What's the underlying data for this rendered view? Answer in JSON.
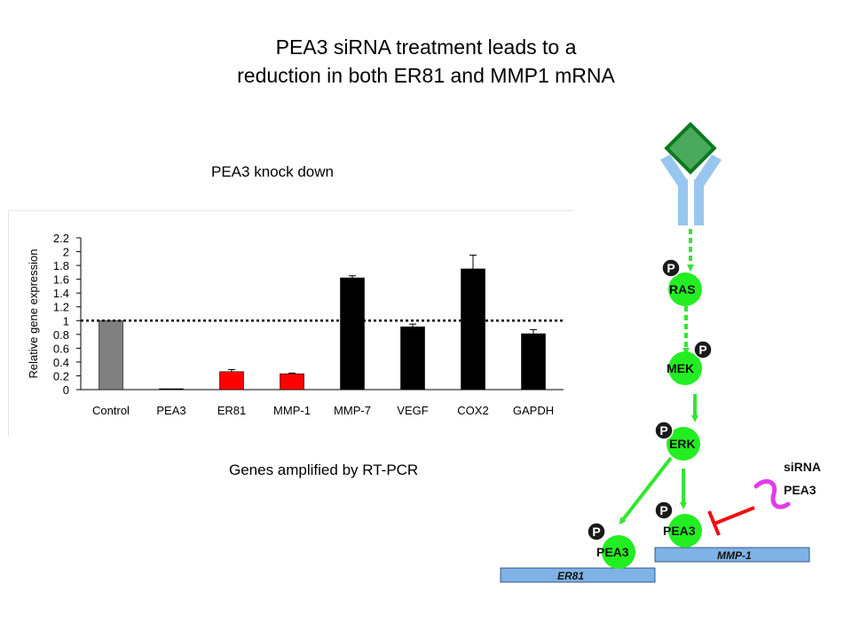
{
  "title": {
    "line1": "PEA3 siRNA treatment leads to a",
    "line2": "reduction in both ER81 and MMP1 mRNA"
  },
  "chart_caption": "PEA3 knock down",
  "genes_caption": "Genes amplified by RT-PCR",
  "chart_data": {
    "type": "bar",
    "categories": [
      "Control",
      "PEA3",
      "ER81",
      "MMP-1",
      "MMP-7",
      "VEGF",
      "COX2",
      "GAPDH"
    ],
    "values": [
      1.0,
      0.01,
      0.26,
      0.23,
      1.62,
      0.91,
      1.75,
      0.81
    ],
    "error": [
      0.0,
      0.0,
      0.03,
      0.01,
      0.03,
      0.04,
      0.2,
      0.06
    ],
    "colors": [
      "#808080",
      "#000000",
      "#ff0000",
      "#ff0000",
      "#000000",
      "#000000",
      "#000000",
      "#000000"
    ],
    "ylabel": "Relative gene expression",
    "ylim": [
      0,
      2.2
    ],
    "yticks": [
      "0",
      "0.2",
      "0.4",
      "0.6",
      "0.8",
      "1",
      "1.2",
      "1.4",
      "1.6",
      "1.8",
      "2",
      "2.2"
    ],
    "reference_line": 1,
    "grid": false
  },
  "pathway": {
    "nodes": {
      "ras": "RAS",
      "mek": "MEK",
      "erk": "ERK",
      "pea3_mmp1": "PEA3",
      "pea3_er81": "PEA3"
    },
    "phospho_label": "P",
    "genes": {
      "mmp1": "MMP-1",
      "er81": "ER81"
    },
    "sirna": {
      "line1": "siRNA",
      "line2": "PEA3"
    },
    "colors": {
      "receptor": "#99c6f0",
      "ligand_fill": "#4aa95d",
      "ligand_stroke": "#0a7a1e",
      "node": "#22ee22",
      "arrow": "#33e633",
      "phospho": "#1a1a1a",
      "gene_bar": "#7fb2e5",
      "inhibitor": "#e11",
      "sirna": "#e23ce8"
    }
  }
}
